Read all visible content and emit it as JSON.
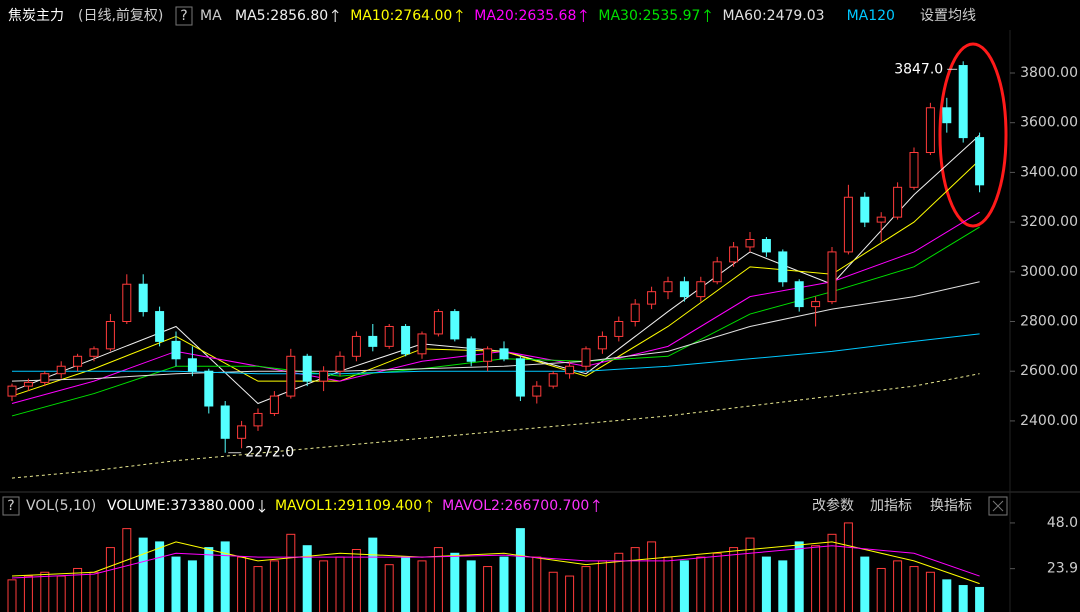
{
  "header": {
    "symbol": "焦炭主力",
    "mode": "(日线,前复权)",
    "help": "?",
    "ma": "MA",
    "ma_labels": [
      "MA5:2856.80",
      "MA10:2764.00",
      "MA20:2635.68",
      "MA30:2535.97",
      "MA60:2479.03",
      "MA120"
    ],
    "ma_colors": [
      "#f0f0f0",
      "#ffff00",
      "#ff00ff",
      "#00e000",
      "#e0e0e0",
      "#00c8ff"
    ],
    "settings": "设置均线"
  },
  "volume_header": {
    "help": "?",
    "indicator": "VOL(5,10)",
    "labels": [
      "VOLUME:373380.000",
      "MAVOL1:291109.400",
      "MAVOL2:266700.700"
    ],
    "label_colors": [
      "#ffffff",
      "#ffff00",
      "#ff33ff"
    ],
    "buttons": [
      "改参数",
      "加指标",
      "换指标"
    ]
  },
  "chart_data": [
    {
      "type": "candlestick",
      "up_color": "#ff3b3b",
      "down_color": "#54ffff",
      "ylim": [
        2122,
        3973
      ],
      "yticks": [
        {
          "value": 2400,
          "label": "2400.00"
        },
        {
          "value": 2600,
          "label": "2600.00"
        },
        {
          "value": 2800,
          "label": "2800.00"
        },
        {
          "value": 3000,
          "label": "3000.00"
        },
        {
          "value": 3200,
          "label": "3200.00"
        },
        {
          "value": 3400,
          "label": "3400.00"
        },
        {
          "value": 3600,
          "label": "3600.00"
        },
        {
          "value": 3800,
          "label": "3800.00"
        }
      ],
      "candles": [
        [
          2500,
          2550,
          2480,
          2540
        ],
        [
          2540,
          2570,
          2520,
          2555
        ],
        [
          2555,
          2600,
          2540,
          2590
        ],
        [
          2590,
          2640,
          2570,
          2620
        ],
        [
          2620,
          2670,
          2600,
          2660
        ],
        [
          2660,
          2700,
          2640,
          2690
        ],
        [
          2690,
          2830,
          2680,
          2800
        ],
        [
          2800,
          2990,
          2790,
          2950
        ],
        [
          2950,
          2990,
          2820,
          2840
        ],
        [
          2840,
          2860,
          2700,
          2720
        ],
        [
          2720,
          2760,
          2620,
          2650
        ],
        [
          2650,
          2700,
          2580,
          2600
        ],
        [
          2600,
          2610,
          2430,
          2460
        ],
        [
          2460,
          2480,
          2272,
          2330
        ],
        [
          2330,
          2400,
          2290,
          2380
        ],
        [
          2380,
          2450,
          2360,
          2430
        ],
        [
          2430,
          2520,
          2420,
          2500
        ],
        [
          2500,
          2690,
          2490,
          2660
        ],
        [
          2660,
          2670,
          2540,
          2560
        ],
        [
          2560,
          2620,
          2520,
          2600
        ],
        [
          2600,
          2680,
          2580,
          2660
        ],
        [
          2660,
          2760,
          2640,
          2740
        ],
        [
          2740,
          2790,
          2680,
          2700
        ],
        [
          2700,
          2790,
          2690,
          2780
        ],
        [
          2780,
          2790,
          2660,
          2670
        ],
        [
          2670,
          2760,
          2650,
          2750
        ],
        [
          2750,
          2850,
          2740,
          2840
        ],
        [
          2840,
          2850,
          2720,
          2730
        ],
        [
          2730,
          2740,
          2620,
          2640
        ],
        [
          2640,
          2700,
          2600,
          2690
        ],
        [
          2690,
          2720,
          2640,
          2650
        ],
        [
          2650,
          2660,
          2480,
          2500
        ],
        [
          2500,
          2560,
          2470,
          2540
        ],
        [
          2540,
          2600,
          2530,
          2590
        ],
        [
          2590,
          2640,
          2570,
          2620
        ],
        [
          2620,
          2700,
          2600,
          2690
        ],
        [
          2690,
          2760,
          2670,
          2740
        ],
        [
          2740,
          2820,
          2720,
          2800
        ],
        [
          2800,
          2890,
          2780,
          2870
        ],
        [
          2870,
          2940,
          2850,
          2920
        ],
        [
          2920,
          2980,
          2890,
          2960
        ],
        [
          2960,
          2980,
          2880,
          2900
        ],
        [
          2900,
          2980,
          2880,
          2960
        ],
        [
          2960,
          3060,
          2950,
          3040
        ],
        [
          3040,
          3120,
          3020,
          3100
        ],
        [
          3100,
          3160,
          3080,
          3130
        ],
        [
          3130,
          3140,
          3060,
          3080
        ],
        [
          3080,
          3090,
          2940,
          2960
        ],
        [
          2960,
          2970,
          2840,
          2860
        ],
        [
          2860,
          2900,
          2780,
          2880
        ],
        [
          2880,
          3100,
          2870,
          3080
        ],
        [
          3080,
          3350,
          3070,
          3300
        ],
        [
          3300,
          3320,
          3180,
          3200
        ],
        [
          3200,
          3240,
          3120,
          3220
        ],
        [
          3220,
          3360,
          3210,
          3340
        ],
        [
          3340,
          3500,
          3330,
          3480
        ],
        [
          3480,
          3680,
          3470,
          3660
        ],
        [
          3660,
          3700,
          3560,
          3600
        ],
        [
          3830,
          3847,
          3520,
          3540
        ],
        [
          3540,
          3560,
          3320,
          3350
        ]
      ],
      "annotations": [
        {
          "index": 58,
          "value": 3847,
          "label": "3847.0"
        },
        {
          "index": 13,
          "value": 2272,
          "label": "2272.0"
        }
      ],
      "lines_x": [
        0,
        5,
        10,
        15,
        20,
        25,
        30,
        35,
        40,
        45,
        50,
        55,
        59
      ],
      "lines": [
        {
          "color": "#f0f0f0",
          "values": [
            2520,
            2650,
            2780,
            2470,
            2600,
            2710,
            2680,
            2590,
            2840,
            3080,
            2950,
            3310,
            3550
          ]
        },
        {
          "color": "#ffff00",
          "values": [
            2500,
            2610,
            2740,
            2560,
            2560,
            2690,
            2680,
            2580,
            2780,
            3020,
            2990,
            3200,
            3450
          ]
        },
        {
          "color": "#ff00ff",
          "values": [
            2470,
            2560,
            2680,
            2620,
            2560,
            2640,
            2680,
            2620,
            2700,
            2900,
            2960,
            3080,
            3240
          ]
        },
        {
          "color": "#00e000",
          "values": [
            2420,
            2510,
            2620,
            2620,
            2580,
            2610,
            2650,
            2640,
            2660,
            2830,
            2920,
            3020,
            3180
          ]
        },
        {
          "color": "#e0e0e0",
          "values": [
            2560,
            2570,
            2590,
            2600,
            2600,
            2610,
            2620,
            2640,
            2680,
            2780,
            2850,
            2900,
            2960
          ]
        },
        {
          "color": "#00c8ff",
          "values": [
            2600,
            2600,
            2600,
            2590,
            2590,
            2600,
            2600,
            2600,
            2620,
            2650,
            2680,
            2720,
            2750
          ]
        },
        {
          "color": "#e8e890",
          "dash": true,
          "values": [
            2170,
            2200,
            2240,
            2270,
            2300,
            2330,
            2360,
            2390,
            2420,
            2460,
            2500,
            2540,
            2590
          ]
        }
      ]
    },
    {
      "type": "bar",
      "ylim": [
        0,
        50.6
      ],
      "yticks": [
        23.9,
        {
          "value": 48,
          "label": "48.0"
        }
      ],
      "values": [
        18,
        20,
        22,
        20,
        24,
        22,
        35,
        45,
        40,
        38,
        30,
        28,
        35,
        38,
        30,
        25,
        28,
        42,
        36,
        28,
        30,
        34,
        40,
        26,
        30,
        28,
        35,
        32,
        28,
        25,
        30,
        45,
        30,
        22,
        20,
        25,
        28,
        32,
        35,
        38,
        30,
        28,
        30,
        32,
        35,
        40,
        30,
        28,
        38,
        36,
        42,
        48,
        30,
        24,
        28,
        25,
        22,
        18,
        15,
        14
      ],
      "lines_x": [
        0,
        5,
        10,
        15,
        20,
        25,
        30,
        35,
        40,
        45,
        50,
        55,
        59
      ],
      "lines": [
        {
          "color": "#ffff00",
          "values": [
            20,
            22,
            38,
            28,
            32,
            30,
            32,
            26,
            30,
            34,
            38,
            28,
            16
          ]
        },
        {
          "color": "#ff00ff",
          "values": [
            19,
            21,
            32,
            30,
            30,
            30,
            31,
            28,
            28,
            32,
            36,
            32,
            20
          ]
        }
      ]
    }
  ]
}
